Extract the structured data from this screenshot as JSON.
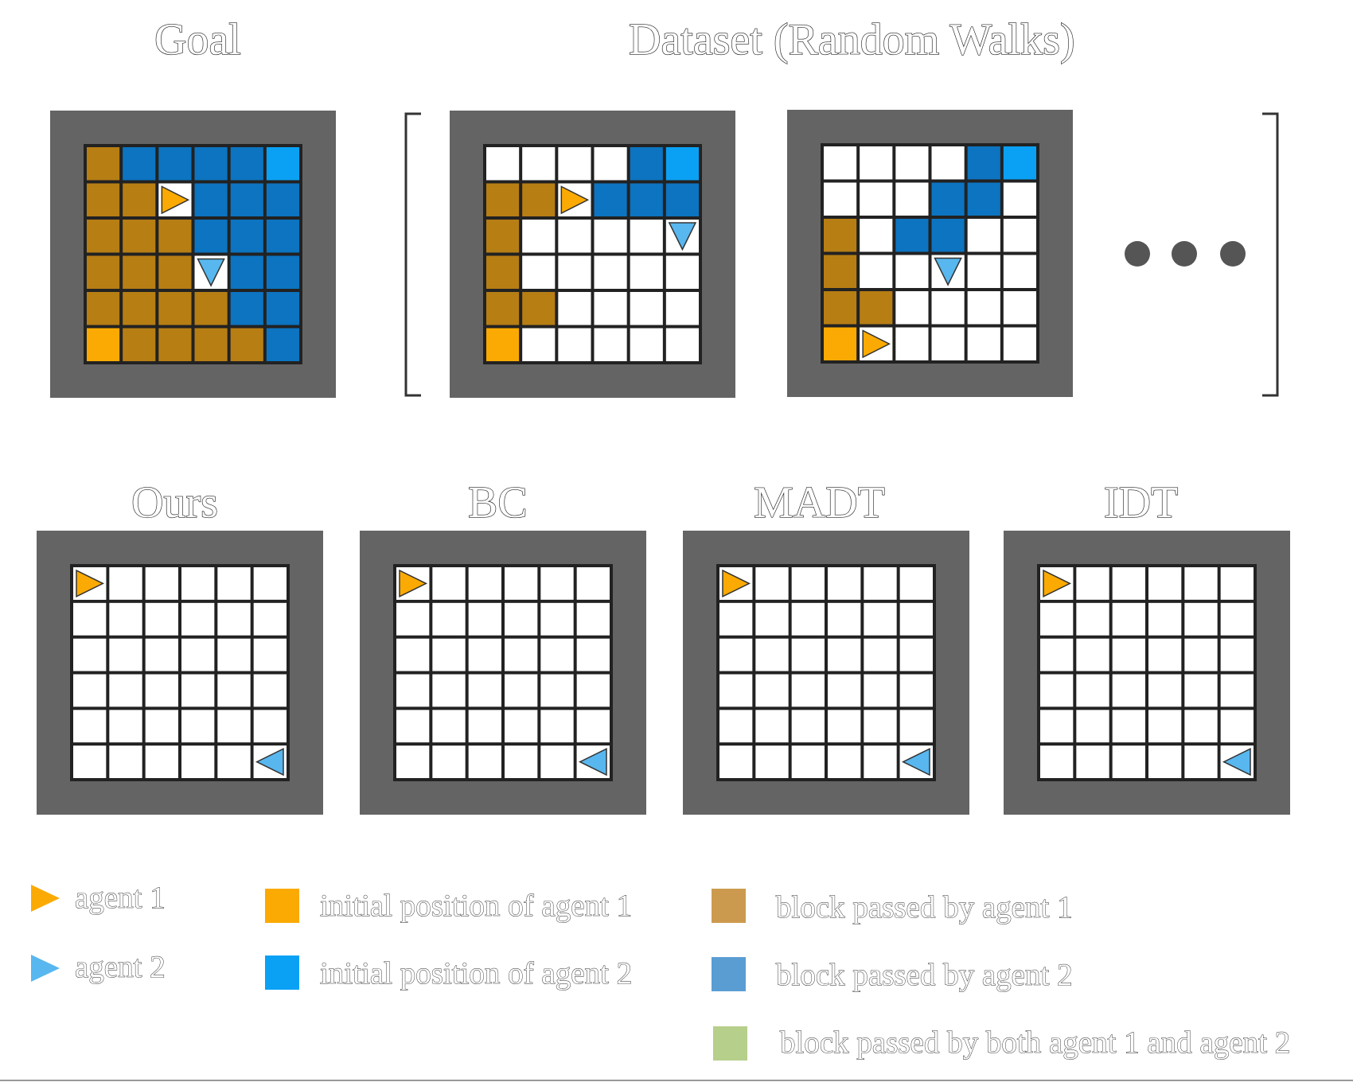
{
  "titles": {
    "goal": "Goal",
    "dataset": "Dataset (Random Walks)",
    "ours": "Ours",
    "bc": "BC",
    "madt": "MADT",
    "idt": "IDT"
  },
  "colors": {
    "frame": "#646464",
    "empty": "#ffffff",
    "grid_line": "#222222",
    "agent1": "#fbaa03",
    "agent2": "#58b7ef",
    "init1": "#fbaa03",
    "init2": "#0aa1f5",
    "pass1": "#b77e14",
    "pass2": "#0c74c0",
    "both": "#b6cf8b",
    "legend_pass1": "#cc9a4f",
    "legend_pass2": "#5a9dd3",
    "legend_both": "#b6cf8b"
  },
  "grids": {
    "goal": {
      "cells": [
        "PBBBBI",
        "PPBBBB",
        "PPPBBB",
        "PPPBBB",
        "PPPPBB",
        "SPPPPB"
      ],
      "agents": [
        {
          "row": 1,
          "col": 2,
          "dir": "right",
          "agent": 1
        },
        {
          "row": 3,
          "col": 3,
          "dir": "down",
          "agent": 2
        }
      ]
    },
    "dataset_1": {
      "cells": [
        "....BI",
        "PPPBBB",
        "P....B",
        "P.....",
        "PP....",
        "S....."
      ],
      "agents": [
        {
          "row": 1,
          "col": 2,
          "dir": "right",
          "agent": 1
        },
        {
          "row": 2,
          "col": 5,
          "dir": "down",
          "agent": 2
        }
      ]
    },
    "dataset_2": {
      "cells": [
        "....BI",
        "...BB.",
        "P.BB..",
        "P.....",
        "PP....",
        "SP...."
      ],
      "agents": [
        {
          "row": 5,
          "col": 1,
          "dir": "right",
          "agent": 1
        },
        {
          "row": 3,
          "col": 3,
          "dir": "down",
          "agent": 2
        }
      ]
    },
    "ours": {
      "cells": [
        "......",
        "......",
        "......",
        "......",
        "......",
        "......"
      ],
      "agents": [
        {
          "row": 0,
          "col": 0,
          "dir": "right",
          "agent": 1
        },
        {
          "row": 5,
          "col": 5,
          "dir": "left",
          "agent": 2
        }
      ]
    },
    "bc": {
      "cells": [
        "......",
        "......",
        "......",
        "......",
        "......",
        "......"
      ],
      "agents": [
        {
          "row": 0,
          "col": 0,
          "dir": "right",
          "agent": 1
        },
        {
          "row": 5,
          "col": 5,
          "dir": "left",
          "agent": 2
        }
      ]
    },
    "madt": {
      "cells": [
        "......",
        "......",
        "......",
        "......",
        "......",
        "......"
      ],
      "agents": [
        {
          "row": 0,
          "col": 0,
          "dir": "right",
          "agent": 1
        },
        {
          "row": 5,
          "col": 5,
          "dir": "left",
          "agent": 2
        }
      ]
    },
    "idt": {
      "cells": [
        "......",
        "......",
        "......",
        "......",
        "......",
        "......"
      ],
      "agents": [
        {
          "row": 0,
          "col": 0,
          "dir": "right",
          "agent": 1
        },
        {
          "row": 5,
          "col": 5,
          "dir": "left",
          "agent": 2
        }
      ]
    }
  },
  "legend": {
    "agent1": "agent 1",
    "agent2": "agent 2",
    "init1": "initial position of agent 1",
    "init2": "initial position of agent 2",
    "pass1": "block passed by agent 1",
    "pass2": "block passed by agent 2",
    "both": "block passed by both agent 1 and agent 2"
  }
}
